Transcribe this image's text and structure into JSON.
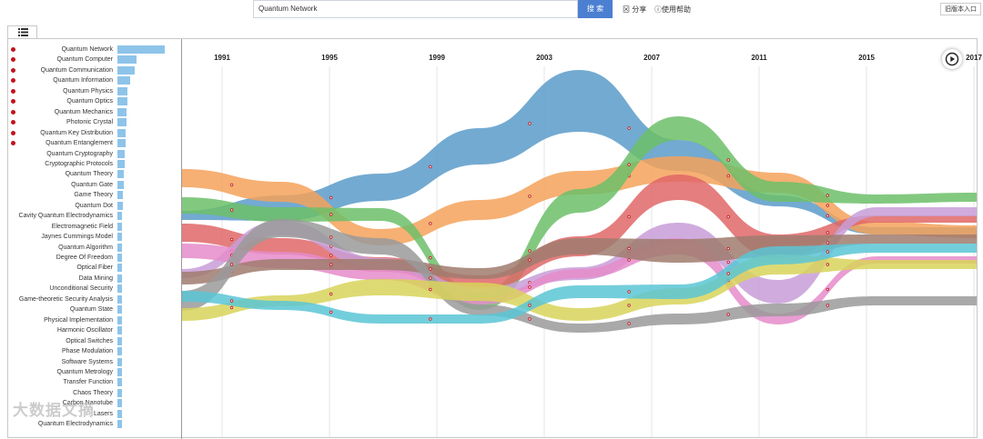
{
  "search": {
    "value": "Quantum Network",
    "button_label": "搜 索"
  },
  "toolbar": {
    "share_label": "分享",
    "help_label": "使用帮助",
    "old_version_label": "旧版本入口"
  },
  "menu_icon": "list-icon",
  "play_icon": "play-icon",
  "watermark": "大数据文摘",
  "colors": {
    "accent": "#4b7fd1",
    "bar": "#8ec4ea",
    "dot": "#c0151b"
  },
  "keywords": [
    {
      "label": "Quantum Network",
      "share": 1.0,
      "flagged": true
    },
    {
      "label": "Quantum Computer",
      "share": 0.4,
      "flagged": true
    },
    {
      "label": "Quantum Communication",
      "share": 0.37,
      "flagged": true
    },
    {
      "label": "Quantum Information",
      "share": 0.27,
      "flagged": true
    },
    {
      "label": "Quantum Physics",
      "share": 0.22,
      "flagged": true
    },
    {
      "label": "Quantum Optics",
      "share": 0.21,
      "flagged": true
    },
    {
      "label": "Quantum Mechanics",
      "share": 0.2,
      "flagged": true
    },
    {
      "label": "Photonic Crystal",
      "share": 0.19,
      "flagged": true
    },
    {
      "label": "Quantum Key Distribution",
      "share": 0.18,
      "flagged": true
    },
    {
      "label": "Quantum Entanglement",
      "share": 0.17,
      "flagged": true
    },
    {
      "label": "Quantum Cryptography",
      "share": 0.16,
      "flagged": false
    },
    {
      "label": "Cryptographic Protocols",
      "share": 0.15,
      "flagged": false
    },
    {
      "label": "Quantum Theory",
      "share": 0.14,
      "flagged": false
    },
    {
      "label": "Quantum Gate",
      "share": 0.13,
      "flagged": false
    },
    {
      "label": "Game Theory",
      "share": 0.12,
      "flagged": false
    },
    {
      "label": "Quantum Dot",
      "share": 0.11,
      "flagged": false
    },
    {
      "label": "Cavity Quantum Electrodynamics",
      "share": 0.1,
      "flagged": false
    },
    {
      "label": "Electromagnetic Field",
      "share": 0.1,
      "flagged": false
    },
    {
      "label": "Jaynes Cummings Model",
      "share": 0.09,
      "flagged": false
    },
    {
      "label": "Quantum Algorithm",
      "share": 0.09,
      "flagged": false
    },
    {
      "label": "Degree Of Freedom",
      "share": 0.08,
      "flagged": false
    },
    {
      "label": "Optical Fiber",
      "share": 0.08,
      "flagged": false
    },
    {
      "label": "Data Mining",
      "share": 0.08,
      "flagged": false
    },
    {
      "label": "Unconditional Security",
      "share": 0.07,
      "flagged": false
    },
    {
      "label": "Game-theoretic Security Analysis",
      "share": 0.07,
      "flagged": false
    },
    {
      "label": "Quantum State",
      "share": 0.07,
      "flagged": false
    },
    {
      "label": "Physical Implementation",
      "share": 0.06,
      "flagged": false
    },
    {
      "label": "Harmonic Oscillator",
      "share": 0.06,
      "flagged": false
    },
    {
      "label": "Optical Switches",
      "share": 0.06,
      "flagged": false
    },
    {
      "label": "Phase Modulation",
      "share": 0.06,
      "flagged": false
    },
    {
      "label": "Software Systems",
      "share": 0.05,
      "flagged": false
    },
    {
      "label": "Quantum Metrology",
      "share": 0.05,
      "flagged": false
    },
    {
      "label": "Transfer Function",
      "share": 0.05,
      "flagged": false
    },
    {
      "label": "Chaos Theory",
      "share": 0.05,
      "flagged": false
    },
    {
      "label": "Carbon Nanotube",
      "share": 0.05,
      "flagged": false
    },
    {
      "label": "Lasers",
      "share": 0.05,
      "flagged": false
    },
    {
      "label": "Quantum Electrodynamics",
      "share": 0.05,
      "flagged": false
    }
  ],
  "timeline": {
    "years": [
      "1991",
      "1995",
      "1999",
      "2003",
      "2007",
      "2011",
      "2015",
      "2017"
    ],
    "streams": [
      {
        "color": "#5b9bc9",
        "center": [
          236,
          228,
          205,
          160,
          110,
          170,
          220,
          253,
          253
        ],
        "width": [
          10,
          28,
          30,
          40,
          68,
          34,
          12,
          8,
          8
        ]
      },
      {
        "color": "#f5a25a",
        "center": [
          195,
          210,
          260,
          230,
          200,
          185,
          200,
          250,
          254
        ],
        "width": [
          20,
          22,
          18,
          22,
          26,
          28,
          22,
          14,
          14
        ]
      },
      {
        "color": "#6cbf68",
        "center": [
          225,
          235,
          235,
          330,
          220,
          140,
          210,
          218,
          216
        ],
        "width": [
          18,
          16,
          14,
          20,
          26,
          26,
          22,
          10,
          10
        ]
      },
      {
        "color": "#e06767",
        "center": [
          255,
          270,
          290,
          310,
          270,
          205,
          270,
          240,
          240
        ],
        "width": [
          20,
          18,
          16,
          16,
          22,
          28,
          26,
          8,
          8
        ]
      },
      {
        "color": "#c89ed8",
        "center": [
          300,
          250,
          290,
          320,
          300,
          255,
          320,
          232,
          232
        ],
        "width": [
          10,
          16,
          14,
          10,
          14,
          22,
          26,
          10,
          10
        ]
      },
      {
        "color": "#e58cca",
        "center": [
          275,
          285,
          300,
          330,
          300,
          270,
          350,
          285,
          285
        ],
        "width": [
          16,
          18,
          14,
          8,
          10,
          18,
          12,
          8,
          8
        ]
      },
      {
        "color": "#a07b6e",
        "center": [
          305,
          290,
          290,
          300,
          270,
          275,
          270,
          262,
          262
        ],
        "width": [
          14,
          12,
          12,
          12,
          18,
          26,
          24,
          10,
          10
        ]
      },
      {
        "color": "#9a9a9a",
        "center": [
          330,
          250,
          270,
          340,
          360,
          350,
          340,
          330,
          330
        ],
        "width": [
          22,
          20,
          18,
          12,
          10,
          12,
          14,
          10,
          10
        ]
      },
      {
        "color": "#d8d45a",
        "center": [
          345,
          330,
          315,
          320,
          345,
          325,
          290,
          290,
          290
        ],
        "width": [
          14,
          12,
          18,
          20,
          14,
          18,
          22,
          10,
          10
        ]
      },
      {
        "color": "#5bc5d5",
        "center": [
          325,
          335,
          350,
          350,
          320,
          320,
          280,
          272,
          272
        ],
        "width": [
          12,
          10,
          10,
          10,
          14,
          16,
          20,
          10,
          10
        ]
      }
    ]
  }
}
